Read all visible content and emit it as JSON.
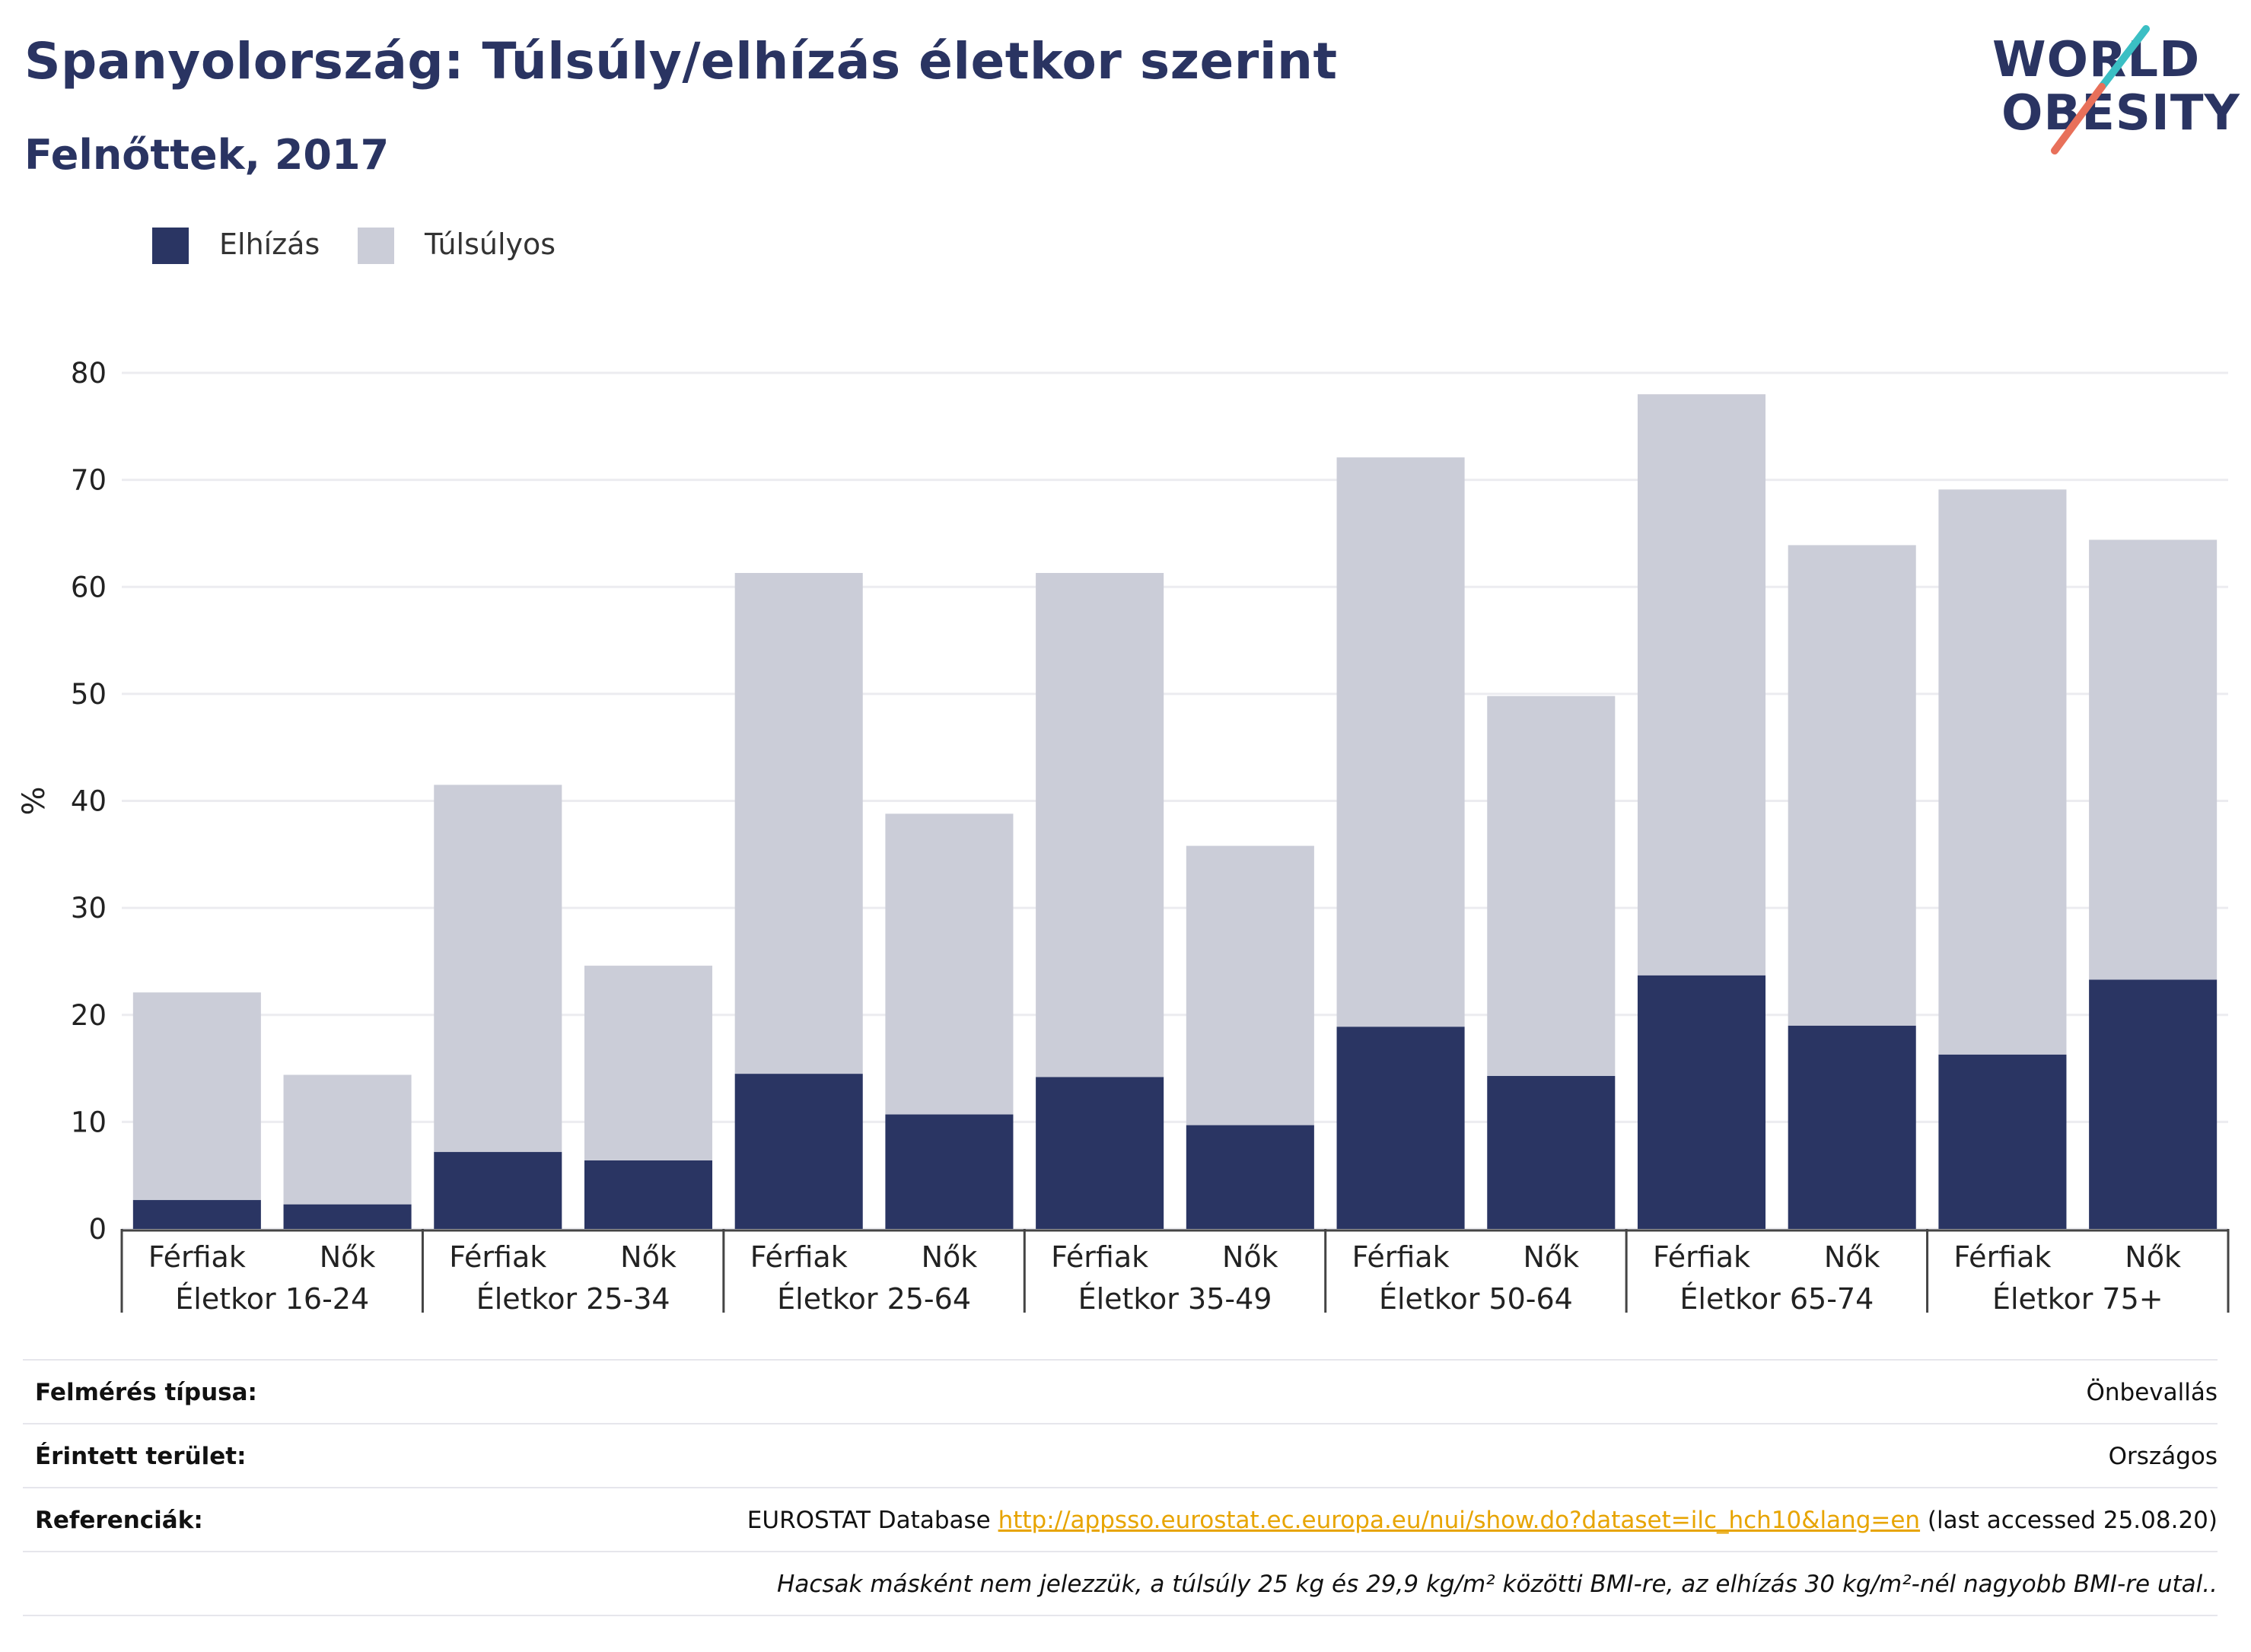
{
  "header": {
    "title": "Spanyolország: Túlsúly/elhízás életkor szerint",
    "subtitle": "Felnőttek, 2017"
  },
  "logo": {
    "line1": "WORLD",
    "line2": "OBESITY",
    "colors": {
      "text": "#2a3462",
      "slash_top": "#3bbfc4",
      "slash_bottom": "#e8705a"
    }
  },
  "chart_data": {
    "type": "bar",
    "stacked": true,
    "ylabel": "%",
    "ylim": [
      0,
      80
    ],
    "yticks": [
      0,
      10,
      20,
      30,
      40,
      50,
      60,
      70,
      80
    ],
    "grid": true,
    "legend_position": "top-left",
    "groups": [
      "Életkor 16-24",
      "Életkor 25-34",
      "Életkor 25-64",
      "Életkor 35-49",
      "Életkor 50-64",
      "Életkor 65-74",
      "Életkor 75+"
    ],
    "subcategories": [
      "Férfiak",
      "Nők"
    ],
    "series": [
      {
        "name": "Elhízás",
        "color": "#2a3563",
        "values": [
          2.7,
          2.3,
          7.2,
          6.4,
          14.5,
          10.7,
          14.2,
          9.7,
          18.9,
          14.3,
          23.7,
          19.0,
          16.3,
          23.3
        ]
      },
      {
        "name": "Túlsúlyos",
        "color": "#cbcdd8",
        "values": [
          19.4,
          12.1,
          34.3,
          18.2,
          46.8,
          28.1,
          47.1,
          26.1,
          53.2,
          35.5,
          54.3,
          44.9,
          52.8,
          41.1
        ]
      }
    ]
  },
  "info": [
    {
      "key": "Felmérés típusa:",
      "value": "Önbevallás"
    },
    {
      "key": "Érintett terület:",
      "value": "Országos"
    },
    {
      "key": "Referenciák:",
      "prefix": "EUROSTAT Database ",
      "link": "http://appsso.eurostat.ec.europa.eu/nui/show.do?dataset=ilc_hch10&lang=en",
      "suffix": " (last accessed 25.08.20)"
    },
    {
      "key": "",
      "value": "Hacsak másként nem jelezzük, a túlsúly 25 kg és 29,9 kg/m² közötti BMI-re, az elhízás 30 kg/m²-nél nagyobb BMI-re utal.."
    }
  ]
}
